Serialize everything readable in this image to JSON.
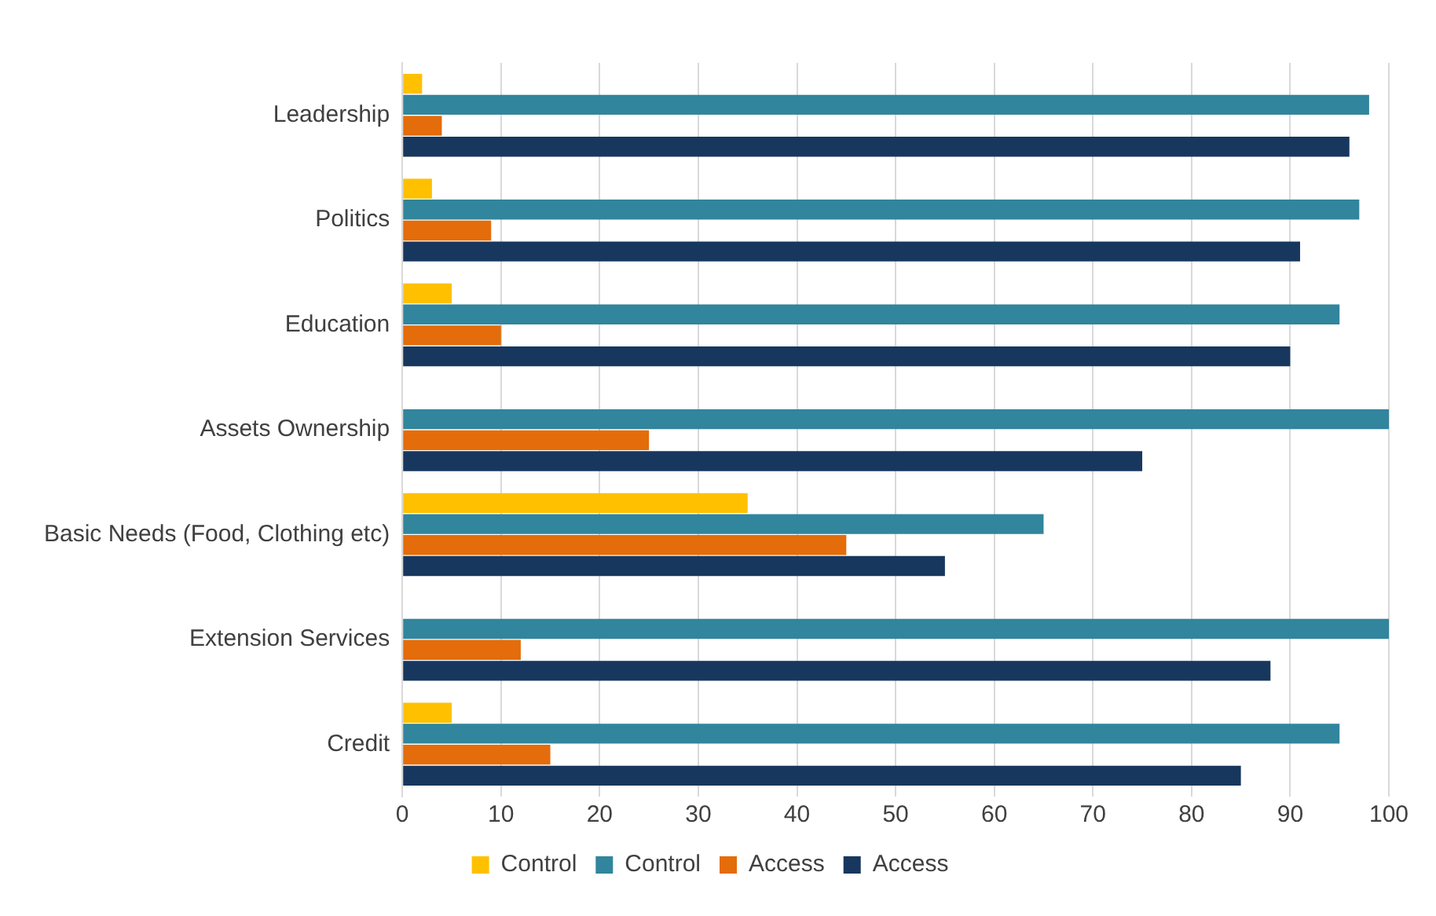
{
  "chart_data": {
    "type": "bar",
    "orientation": "horizontal",
    "categories": [
      "Leadership",
      "Politics",
      "Education",
      "Assets Ownership",
      "Basic Needs (Food, Clothing etc)",
      "Extension Services",
      "Credit"
    ],
    "series": [
      {
        "name": "Control",
        "color": "#ffc000",
        "values": [
          2,
          3,
          5,
          0,
          35,
          0,
          5
        ]
      },
      {
        "name": "Control",
        "color": "#31859c",
        "values": [
          98,
          97,
          95,
          100,
          65,
          100,
          95
        ]
      },
      {
        "name": "Access",
        "color": "#e46c0a",
        "values": [
          4,
          9,
          10,
          25,
          45,
          12,
          15
        ]
      },
      {
        "name": "Access",
        "color": "#17375e",
        "values": [
          96,
          91,
          90,
          75,
          55,
          88,
          85
        ]
      }
    ],
    "xlim": [
      0,
      100
    ],
    "xticks": [
      0,
      10,
      20,
      30,
      40,
      50,
      60,
      70,
      80,
      90,
      100
    ],
    "grid": "x",
    "legend": "bottom"
  }
}
